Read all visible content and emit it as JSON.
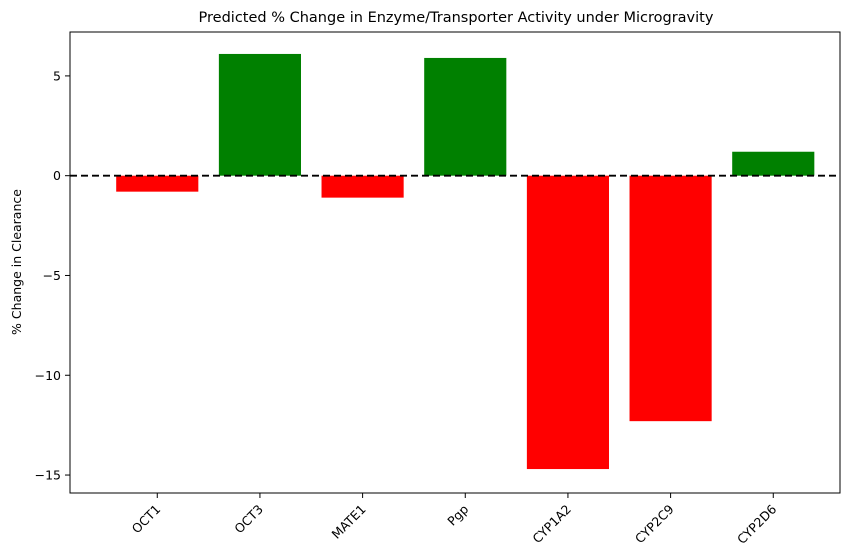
{
  "chart_data": {
    "type": "bar",
    "title": "Predicted % Change in Enzyme/Transporter Activity under Microgravity",
    "xlabel": "",
    "ylabel": "% Change in Clearance",
    "categories": [
      "OCT1",
      "OCT3",
      "MATE1",
      "Pgp",
      "CYP1A2",
      "CYP2C9",
      "CYP2D6"
    ],
    "values": [
      -0.8,
      6.1,
      -1.1,
      5.9,
      -14.7,
      -12.3,
      1.2
    ],
    "ylim": [
      -15.9,
      7.2
    ],
    "yticks": [
      -15,
      -10,
      -5,
      0,
      5
    ],
    "ytick_labels": [
      "−15",
      "−10",
      "−5",
      "0",
      "5"
    ],
    "reference_line": {
      "y": 0,
      "style": "dashed",
      "color": "#000000"
    },
    "colors": {
      "positive": "#008000",
      "negative": "#ff0000"
    },
    "grid": false,
    "legend": "none"
  }
}
